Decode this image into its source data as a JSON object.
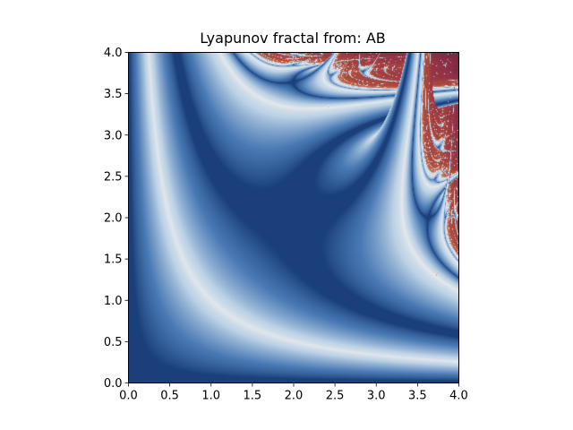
{
  "chart_data": {
    "type": "heatmap",
    "title": "Lyapunov fractal from: AB",
    "xlabel": "",
    "ylabel": "",
    "sequence": "AB",
    "xlim": [
      0.0,
      4.0
    ],
    "ylim": [
      0.0,
      4.0
    ],
    "x_ticks": [
      0.0,
      0.5,
      1.0,
      1.5,
      2.0,
      2.5,
      3.0,
      3.5,
      4.0
    ],
    "x_tick_labels": [
      "0.0",
      "0.5",
      "1.0",
      "1.5",
      "2.0",
      "2.5",
      "3.0",
      "3.5",
      "4.0"
    ],
    "y_ticks": [
      0.0,
      0.5,
      1.0,
      1.5,
      2.0,
      2.5,
      3.0,
      3.5,
      4.0
    ],
    "y_tick_labels": [
      "0.0",
      "0.5",
      "1.0",
      "1.5",
      "2.0",
      "2.5",
      "3.0",
      "3.5",
      "4.0"
    ],
    "colormap": {
      "negative": [
        "#1a3f7a",
        "#4a7ab5",
        "#bcd2e6"
      ],
      "zero": "#f4f1ef",
      "positive": [
        "#d9a58a",
        "#b4513b",
        "#933248",
        "#5b1a3a"
      ]
    },
    "grid": false,
    "legend": "none"
  }
}
